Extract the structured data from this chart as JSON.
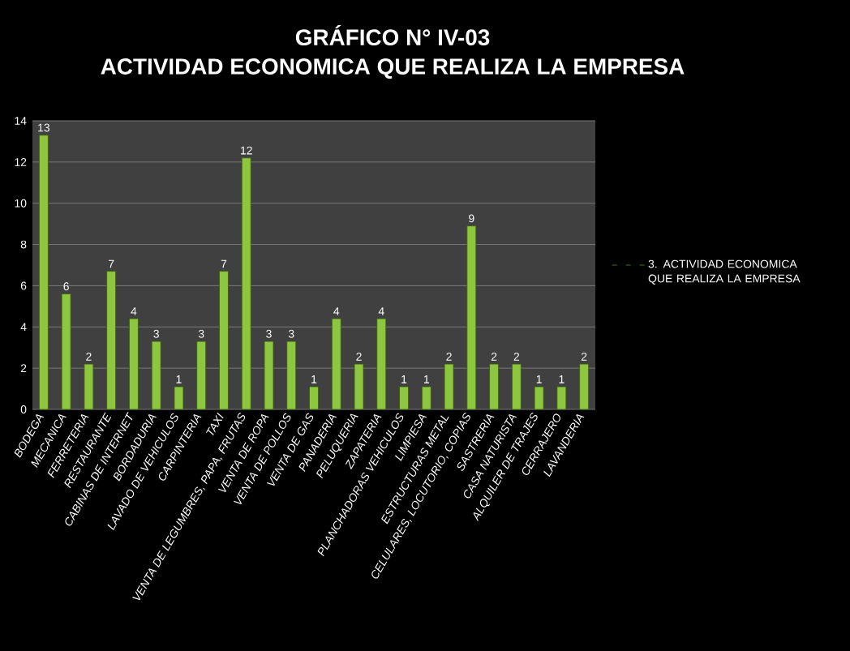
{
  "chart_data": {
    "type": "bar",
    "title": "GRÁFICO N° IV-03\nACTIVIDAD ECONOMICA QUE REALIZA LA EMPRESA",
    "categories": [
      "BODEGA",
      "MECANICA",
      "FERRETERIA",
      "RESTAURANTE",
      "CABINAS DE INTERNET",
      "BORDADURIA",
      "LAVADO DE VEHICULOS",
      "CARPINTERIA",
      "TAXI",
      "VENTA DE LEGUMBRES, PAPA, FRUTAS",
      "VENTA DE ROPA",
      "VENTA DE POLLOS",
      "VENTA DE GAS",
      "PANADERIA",
      "PELUQUERIA",
      "ZAPATERIA",
      "PLANCHADORAS VEHICULOS",
      "LIMPIESA",
      "ESTRUCTURAS METAL",
      "CELULARES, LOCUTORIO, COPIAS",
      "SASTRERIA",
      "CASA NATURISTA",
      "ALQUILER DE TRAJES",
      "CERRAJERO",
      "LAVANDERIA"
    ],
    "series": [
      {
        "name": "3. ACTIVIDAD ECONOMICA QUE REALIZA LA EMPRESA",
        "color": "#8dc63f",
        "values": [
          13.3,
          5.6,
          2.2,
          6.7,
          4.4,
          3.3,
          1.1,
          3.3,
          6.7,
          12.2,
          3.3,
          3.3,
          1.1,
          4.4,
          2.2,
          4.4,
          1.1,
          1.1,
          2.2,
          8.9,
          2.2,
          2.2,
          1.1,
          1.1,
          2.2
        ],
        "value_labels": [
          "13",
          "6",
          "2",
          "7",
          "4",
          "3",
          "1",
          "3",
          "7",
          "12",
          "3",
          "3",
          "1",
          "4",
          "2",
          "4",
          "1",
          "1",
          "2",
          "9",
          "2",
          "2",
          "1",
          "1",
          "2"
        ]
      }
    ],
    "ylim": [
      0,
      14
    ],
    "yticks": [
      0,
      2,
      4,
      6,
      8,
      10,
      12,
      14
    ],
    "grid": "y",
    "legend": "right"
  }
}
